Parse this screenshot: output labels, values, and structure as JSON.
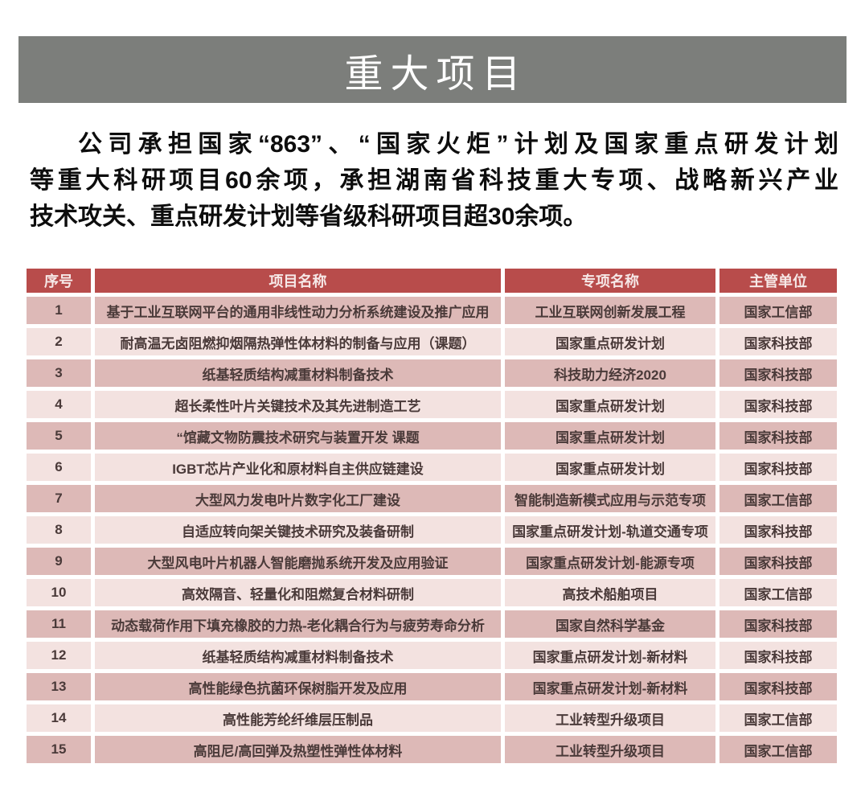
{
  "page": {
    "title": "重大项目",
    "intro_lines": [
      "公司承担国家“863”、“国家火炬”计划及国家重点研发计划",
      "等重大科研项目60余项，承担湖南省科技重大专项、战略新兴产业",
      "技术攻关、重点研发计划等省级科研项目超30余项。"
    ]
  },
  "colors": {
    "banner_bg": "#7c7e7b",
    "table_header_bg": "#b84c4b",
    "row_odd_bg": "#ddb9b7",
    "row_even_bg": "#f3e2e0",
    "cell_text": "#4a3a39"
  },
  "table": {
    "columns": [
      "序号",
      "项目名称",
      "专项名称",
      "主管单位"
    ],
    "rows": [
      {
        "no": "1",
        "project": "基于工业互联网平台的通用非线性动力分析系统建设及推广应用",
        "special": "工业互联网创新发展工程",
        "authority": "国家工信部"
      },
      {
        "no": "2",
        "project": "耐高温无卤阻燃抑烟隔热弹性体材料的制备与应用（课题）",
        "special": "国家重点研发计划",
        "authority": "国家科技部"
      },
      {
        "no": "3",
        "project": "纸基轻质结构减重材料制备技术",
        "special": "科技助力经济2020",
        "authority": "国家科技部"
      },
      {
        "no": "4",
        "project": "超长柔性叶片关键技术及其先进制造工艺",
        "special": "国家重点研发计划",
        "authority": "国家科技部"
      },
      {
        "no": "5",
        "project": "“馆藏文物防震技术研究与装置开发 课题",
        "special": "国家重点研发计划",
        "authority": "国家科技部"
      },
      {
        "no": "6",
        "project": "IGBT芯片产业化和原材料自主供应链建设",
        "special": "国家重点研发计划",
        "authority": "国家科技部"
      },
      {
        "no": "7",
        "project": "大型风力发电叶片数字化工厂建设",
        "special": "智能制造新模式应用与示范专项",
        "authority": "国家工信部"
      },
      {
        "no": "8",
        "project": "自适应转向架关键技术研究及装备研制",
        "special": "国家重点研发计划-轨道交通专项",
        "authority": "国家科技部"
      },
      {
        "no": "9",
        "project": "大型风电叶片机器人智能磨抛系统开发及应用验证",
        "special": "国家重点研发计划-能源专项",
        "authority": "国家科技部"
      },
      {
        "no": "10",
        "project": "高效隔音、轻量化和阻燃复合材料研制",
        "special": "高技术船舶项目",
        "authority": "国家工信部"
      },
      {
        "no": "11",
        "project": "动态载荷作用下填充橡胶的力热-老化耦合行为与疲劳寿命分析",
        "special": "国家自然科学基金",
        "authority": "国家科技部"
      },
      {
        "no": "12",
        "project": "纸基轻质结构减重材料制备技术",
        "special": "国家重点研发计划-新材料",
        "authority": "国家科技部"
      },
      {
        "no": "13",
        "project": "高性能绿色抗菌环保树脂开发及应用",
        "special": "国家重点研发计划-新材料",
        "authority": "国家科技部"
      },
      {
        "no": "14",
        "project": "高性能芳纶纤维层压制品",
        "special": "工业转型升级项目",
        "authority": "国家工信部"
      },
      {
        "no": "15",
        "project": "高阻尼/高回弹及热塑性弹性体材料",
        "special": "工业转型升级项目",
        "authority": "国家工信部"
      }
    ]
  }
}
